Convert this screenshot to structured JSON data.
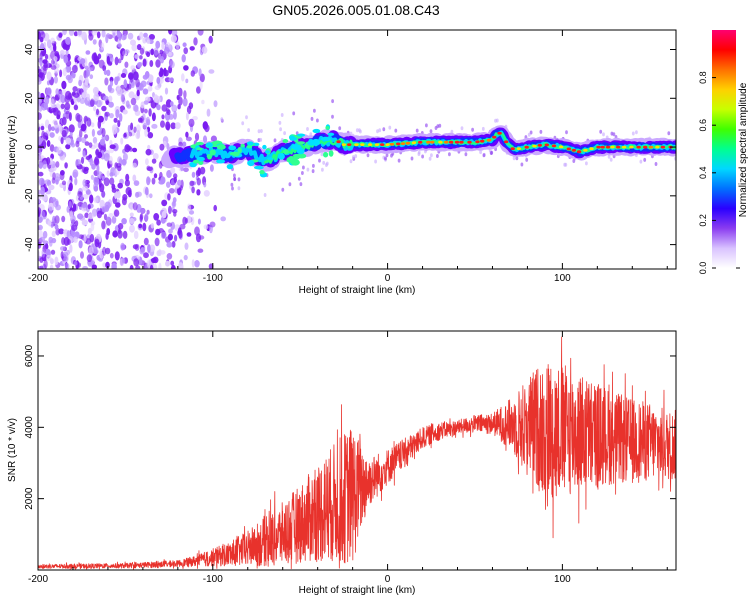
{
  "figure_title": "GN05.2026.005.01.08.C43",
  "colors": {
    "snr_line": "#e8322c",
    "colormap": [
      "#ffffff",
      "#e4ccff",
      "#8a3cf0",
      "#5a00e6",
      "#0010ff",
      "#00c8ff",
      "#00ff80",
      "#9cff00",
      "#ffff00",
      "#ff7a00",
      "#ff0000",
      "#ff0080"
    ]
  },
  "chart_data": [
    {
      "type": "heatmap",
      "name": "spectrogram",
      "title": "",
      "xlabel": "Height of straight line (km)",
      "ylabel": "Frequency (Hz)",
      "xlim": [
        -200,
        165
      ],
      "ylim": [
        -50,
        48
      ],
      "x_ticks": [
        -200,
        -100,
        0,
        100
      ],
      "x_tick_labels": [
        "-200",
        "-100",
        "0",
        "100"
      ],
      "y_ticks": [
        -40,
        -20,
        0,
        20,
        40
      ],
      "y_tick_labels": [
        "-40",
        "-20",
        "0",
        "20",
        "40"
      ],
      "description_of_content": "noise scatter below ~ -100 km; narrow band near 0 Hz from -120 km onward",
      "ridge": {
        "x": [
          -120,
          -110,
          -100,
          -90,
          -80,
          -70,
          -60,
          -50,
          -40,
          -30,
          -25,
          -20,
          -10,
          0,
          10,
          20,
          30,
          40,
          50,
          60,
          62,
          65,
          68,
          72,
          80,
          90,
          100,
          105,
          110,
          115,
          120,
          130,
          140,
          150,
          160,
          165
        ],
        "y": [
          -4,
          -3,
          -2,
          -3,
          -1,
          -6,
          -2,
          0,
          2,
          3,
          1,
          1,
          1,
          1,
          1.5,
          2,
          2,
          2,
          2,
          3,
          5,
          6,
          2,
          -1,
          0,
          1,
          0,
          -1,
          -2,
          -1,
          0,
          0,
          0,
          0,
          0,
          0
        ]
      },
      "colorbar": {
        "label": "Normalized spectral amplitude",
        "range": [
          0,
          1
        ],
        "ticks": [
          0.0,
          0.2,
          0.4,
          0.6,
          0.8
        ],
        "tick_labels": [
          "0.0",
          "0.2",
          "0.4",
          "0.6",
          "0.8"
        ]
      }
    },
    {
      "type": "line",
      "name": "snr",
      "title": "",
      "xlabel": "Height of straight line (km)",
      "ylabel": "SNR (10 * v/v)",
      "xlim": [
        -200,
        165
      ],
      "ylim": [
        0,
        6700
      ],
      "x_ticks": [
        -200,
        -100,
        0,
        100
      ],
      "x_tick_labels": [
        "-200",
        "-100",
        "0",
        "100"
      ],
      "y_ticks": [
        2000,
        4000,
        6000
      ],
      "y_tick_labels": [
        "2000",
        "4000",
        "6000"
      ],
      "envelope": {
        "x": [
          -200,
          -150,
          -120,
          -110,
          -100,
          -90,
          -80,
          -70,
          -60,
          -50,
          -40,
          -30,
          -20,
          -15,
          -10,
          -5,
          0,
          10,
          20,
          30,
          40,
          50,
          60,
          70,
          80,
          90,
          100,
          110,
          120,
          130,
          140,
          150,
          160,
          165
        ],
        "mean": [
          100,
          120,
          180,
          250,
          350,
          450,
          600,
          800,
          1000,
          1300,
          1600,
          1900,
          2100,
          2300,
          2500,
          2700,
          2900,
          3300,
          3700,
          3900,
          4000,
          4100,
          4100,
          4100,
          4000,
          4000,
          3900,
          3850,
          3800,
          3700,
          3600,
          3600,
          3500,
          3500
        ],
        "spread": [
          60,
          70,
          90,
          150,
          250,
          350,
          500,
          700,
          900,
          1100,
          1400,
          1700,
          2000,
          1200,
          700,
          600,
          500,
          400,
          300,
          250,
          200,
          250,
          300,
          700,
          1400,
          2000,
          1900,
          1700,
          1500,
          1300,
          1200,
          1100,
          1000,
          1000
        ]
      }
    }
  ]
}
